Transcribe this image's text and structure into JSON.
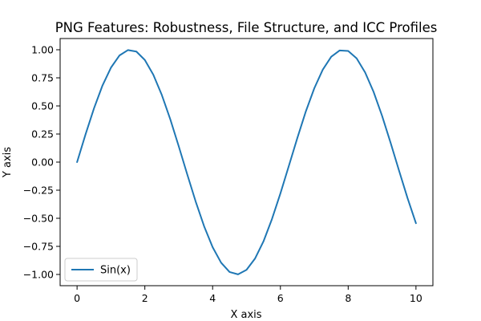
{
  "chart_data": {
    "type": "line",
    "title": "PNG Features: Robustness, File Structure, and ICC Profiles",
    "xlabel": "X axis",
    "ylabel": "Y axis",
    "xlim": [
      -0.5,
      10.5
    ],
    "ylim": [
      -1.1,
      1.1
    ],
    "x_ticks": [
      0,
      2,
      4,
      6,
      8,
      10
    ],
    "x_tick_labels": [
      "0",
      "2",
      "4",
      "6",
      "8",
      "10"
    ],
    "y_ticks": [
      -1.0,
      -0.75,
      -0.5,
      -0.25,
      0.0,
      0.25,
      0.5,
      0.75,
      1.0
    ],
    "y_tick_labels": [
      "−1.00",
      "−0.75",
      "−0.50",
      "−0.25",
      "0.00",
      "0.25",
      "0.50",
      "0.75",
      "1.00"
    ],
    "grid": false,
    "legend": {
      "placement": "lower-left",
      "entries": [
        "Sin(x)"
      ]
    },
    "series": [
      {
        "name": "Sin(x)",
        "color": "#1f77b4",
        "x": [
          0,
          0.25,
          0.5,
          0.75,
          1.0,
          1.25,
          1.5,
          1.75,
          2.0,
          2.25,
          2.5,
          2.75,
          3.0,
          3.25,
          3.5,
          3.75,
          4.0,
          4.25,
          4.5,
          4.75,
          5.0,
          5.25,
          5.5,
          5.75,
          6.0,
          6.25,
          6.5,
          6.75,
          7.0,
          7.25,
          7.5,
          7.75,
          8.0,
          8.25,
          8.5,
          8.75,
          9.0,
          9.25,
          9.5,
          9.75,
          10.0
        ],
        "y": [
          0.0,
          0.247,
          0.479,
          0.682,
          0.841,
          0.949,
          0.997,
          0.984,
          0.909,
          0.778,
          0.598,
          0.382,
          0.141,
          -0.108,
          -0.351,
          -0.572,
          -0.757,
          -0.895,
          -0.978,
          -0.999,
          -0.959,
          -0.859,
          -0.706,
          -0.508,
          -0.279,
          -0.033,
          0.215,
          0.451,
          0.657,
          0.823,
          0.938,
          0.994,
          0.989,
          0.923,
          0.798,
          0.625,
          0.412,
          0.174,
          -0.075,
          -0.319,
          -0.544
        ]
      }
    ]
  }
}
